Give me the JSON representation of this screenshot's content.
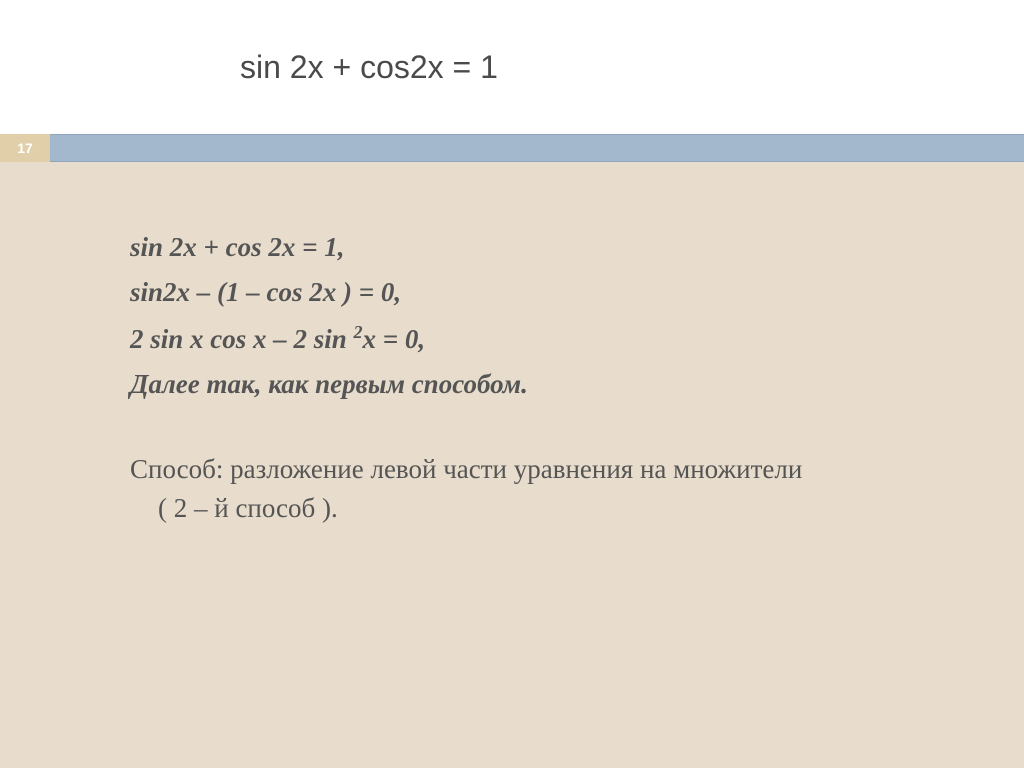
{
  "slide": {
    "number": "17",
    "title": "sin 2x + cos2x = 1",
    "background_color": "#e8ddcc",
    "title_bg_color": "#ffffff",
    "band_color": "#a3b8cc",
    "badge_bg_color": "#e0cfa8",
    "badge_text_color": "#ffffff",
    "text_color": "#555555",
    "title_fontsize": 32,
    "body_fontsize": 27
  },
  "equations": {
    "line1": "sin 2x + cos 2x = 1,",
    "line2": "sin2x – (1 – cos 2x ) = 0,",
    "line3_a": "2 sin x cos x – 2 sin ",
    "line3_sup": "2",
    "line3_b": "x = 0,",
    "line4": "Далее так, как  первым способом."
  },
  "method": {
    "line1": "Способ: разложение левой части уравнения на множители",
    "line2": "( 2 – й способ )."
  }
}
